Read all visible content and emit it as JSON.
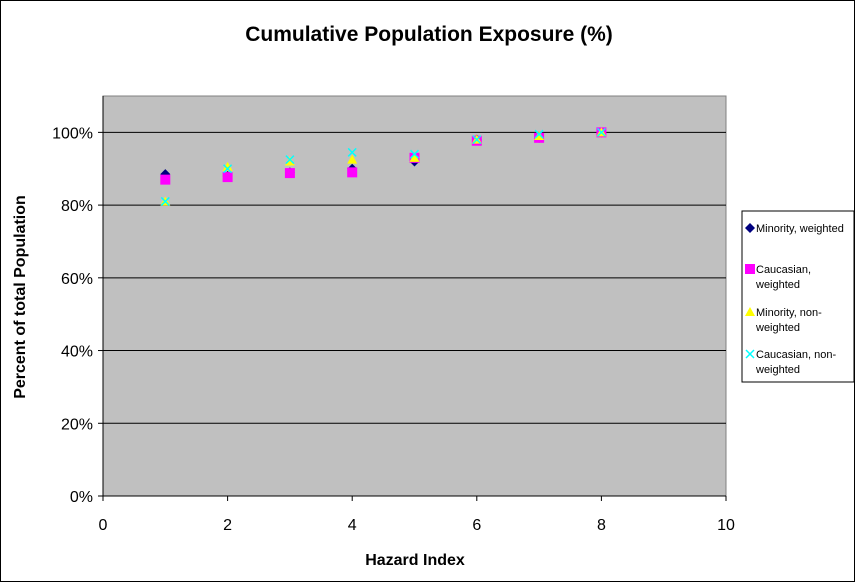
{
  "chart_data": {
    "type": "scatter",
    "title": "Cumulative Population Exposure (%)",
    "xlabel": "Hazard Index",
    "ylabel": "Percent of total Population",
    "xlim": [
      0,
      10
    ],
    "ylim": [
      0,
      1.1
    ],
    "x_ticks": [
      0,
      2,
      4,
      6,
      8,
      10
    ],
    "x_tick_labels": [
      "0",
      "2",
      "4",
      "6",
      "8",
      "10"
    ],
    "y_ticks": [
      0,
      0.2,
      0.4,
      0.6,
      0.8,
      1.0
    ],
    "y_tick_labels": [
      "0%",
      "20%",
      "40%",
      "60%",
      "80%",
      "100%"
    ],
    "grid": "horizontal",
    "plot_background": "#c0c0c0",
    "legend_position": "right",
    "series": [
      {
        "name": "Minority, weighted",
        "legend_lines": [
          "Minority, weighted"
        ],
        "marker": "diamond",
        "color": "#000080",
        "x": [
          1,
          2,
          3,
          4,
          5,
          6,
          7,
          8
        ],
        "y": [
          0.885,
          0.88,
          0.89,
          0.9,
          0.92,
          0.98,
          0.985,
          1.0
        ]
      },
      {
        "name": "Caucasian, weighted",
        "legend_lines": [
          "Caucasian,",
          "weighted"
        ],
        "marker": "square",
        "color": "#ff00ff",
        "x": [
          1,
          2,
          3,
          4,
          5,
          6,
          7,
          8
        ],
        "y": [
          0.87,
          0.877,
          0.888,
          0.89,
          0.93,
          0.977,
          0.985,
          1.0
        ]
      },
      {
        "name": "Minority, non-weighted",
        "legend_lines": [
          "Minority, non-",
          "weighted"
        ],
        "marker": "triangle",
        "color": "#ffff00",
        "x": [
          1,
          2,
          3,
          4,
          5,
          6,
          7,
          8
        ],
        "y": [
          0.81,
          0.905,
          0.92,
          0.925,
          0.93,
          0.98,
          0.99,
          1.0
        ]
      },
      {
        "name": "Caucasian, non-weighted",
        "legend_lines": [
          "Caucasian, non-",
          "weighted"
        ],
        "marker": "x",
        "color": "#00ffff",
        "x": [
          1,
          2,
          3,
          4,
          5,
          6,
          7,
          8
        ],
        "y": [
          0.81,
          0.9,
          0.925,
          0.945,
          0.94,
          0.98,
          0.995,
          1.0
        ]
      }
    ]
  }
}
